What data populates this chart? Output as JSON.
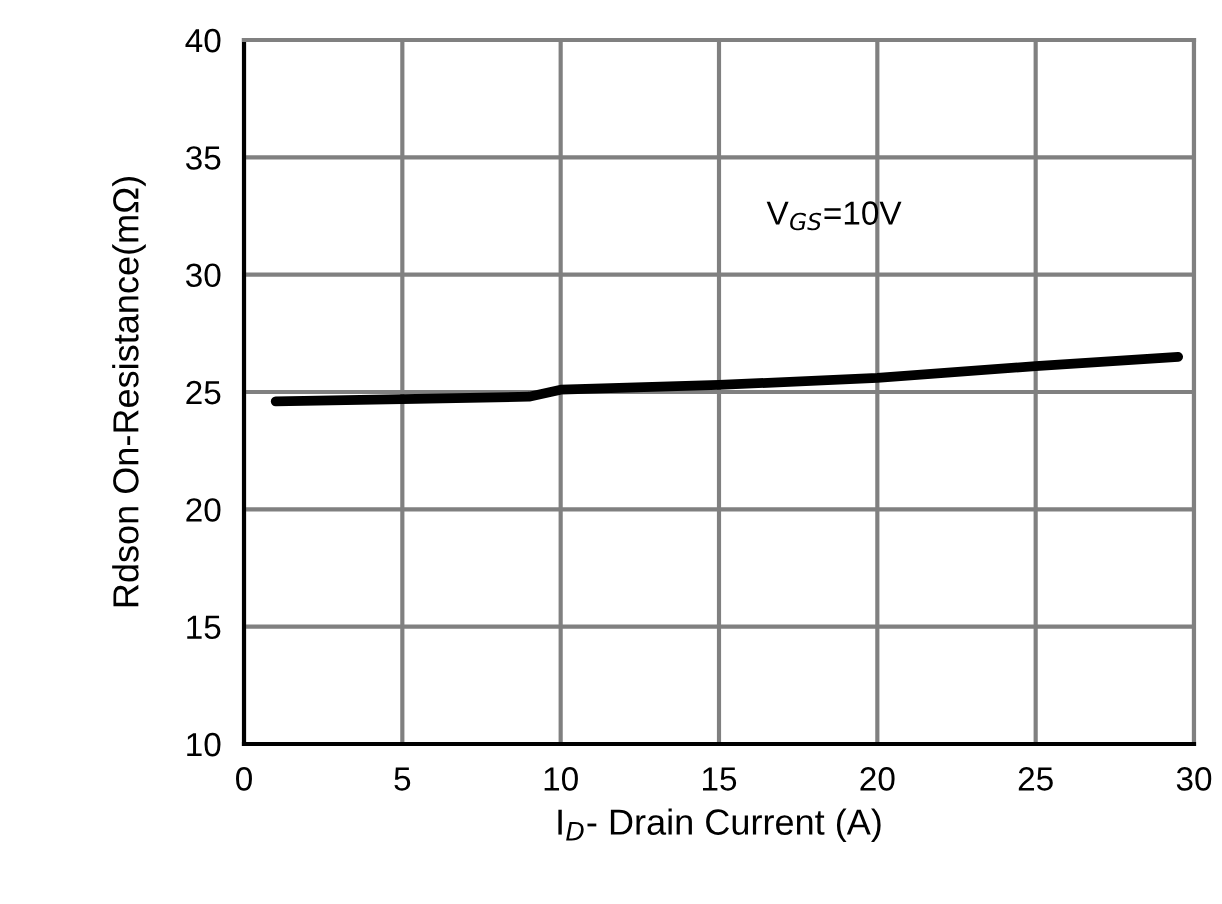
{
  "chart_data": {
    "type": "line",
    "xlabel": "I$_{D}$- Drain Current (A)",
    "ylabel": "Rdson On-Resistance(mΩ)",
    "x": [
      1,
      5,
      9,
      10,
      15,
      20,
      25,
      29.5
    ],
    "series": [
      {
        "color": "#000000",
        "values": [
          24.6,
          24.7,
          24.8,
          25.1,
          25.3,
          25.6,
          26.1,
          26.5
        ]
      }
    ],
    "xlim": [
      0,
      30
    ],
    "xticks": [
      0,
      5,
      10,
      15,
      20,
      25,
      30
    ],
    "ylim": [
      10,
      40
    ],
    "yticks": [
      10,
      15,
      20,
      25,
      30,
      35,
      40
    ],
    "grid": true,
    "marker": "none",
    "line_style": "solid",
    "annotations": [
      "V$_{GS}$=10V"
    ]
  }
}
